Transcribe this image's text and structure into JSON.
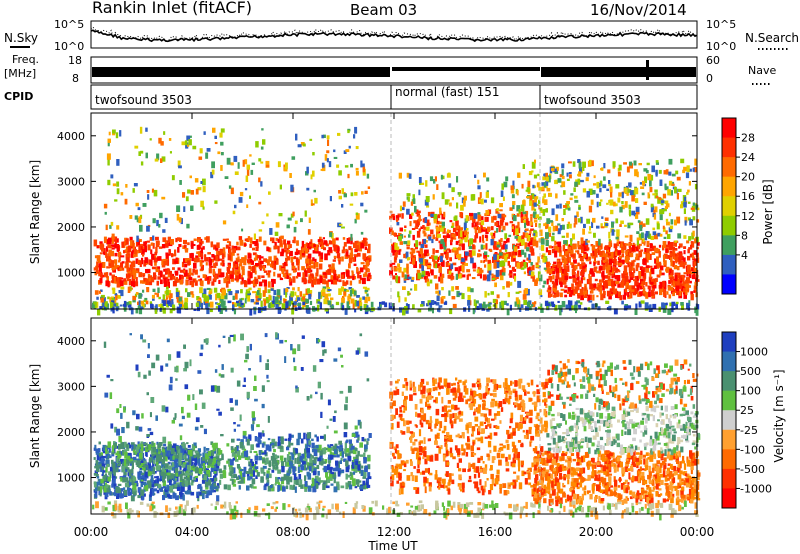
{
  "header": {
    "station": "Rankin Inlet (fitACF)",
    "beam": "Beam 03",
    "date": "16/Nov/2014"
  },
  "left_labels": {
    "nsky": "N.Sky",
    "freq_line1": "Freq.",
    "freq_line2": "[MHz]",
    "cpid": "CPID"
  },
  "right_labels": {
    "nsearch": "N.Search",
    "nave": "Nave"
  },
  "chart_data": [
    {
      "type": "line",
      "panel": "noise",
      "ytick_labels_left": [
        "10^5",
        "10^0"
      ],
      "ytick_labels_right": [
        "10^5",
        "10^0"
      ]
    },
    {
      "type": "line",
      "panel": "frequency-nave",
      "ytick_labels_left": [
        "18",
        "8"
      ],
      "ytick_labels_right": [
        "60",
        "0"
      ]
    },
    {
      "type": "table",
      "panel": "cpid",
      "segments": [
        {
          "start_hour": 0,
          "end_hour": 12,
          "label": "twofsound 3503"
        },
        {
          "start_hour": 12,
          "end_hour": 18,
          "label": "normal (fast) 151"
        },
        {
          "start_hour": 18,
          "end_hour": 24,
          "label": "twofsound 3503"
        }
      ]
    },
    {
      "type": "heatmap",
      "panel": "power",
      "ylabel": "Slant Range [km]",
      "ylim": [
        200,
        4500
      ],
      "yticks": [
        1000,
        2000,
        3000,
        4000
      ],
      "colorbar": {
        "label": "Power [dB]",
        "ticks": [
          "28",
          "24",
          "20",
          "16",
          "12",
          "8",
          "4"
        ],
        "colors": [
          "#ff0000",
          "#ff3000",
          "#ff6a00",
          "#ffa500",
          "#e0d000",
          "#8fcc00",
          "#3f9f5f",
          "#2f5fbf",
          "#0000ff"
        ]
      }
    },
    {
      "type": "heatmap",
      "panel": "velocity",
      "ylabel": "Slant Range [km]",
      "ylim": [
        200,
        4500
      ],
      "yticks": [
        1000,
        2000,
        3000,
        4000
      ],
      "colorbar": {
        "label": "Velocity [m s⁻¹]",
        "ticks": [
          "1000",
          "500",
          "100",
          "25",
          "-25",
          "-100",
          "-500",
          "-1000"
        ],
        "colors": [
          "#1f3fbf",
          "#3070b0",
          "#4a9070",
          "#60c040",
          "#cfcfcf",
          "#ffa030",
          "#ff6a00",
          "#ff3000",
          "#ff0000"
        ]
      }
    }
  ],
  "x_axis": {
    "label": "Time UT",
    "ticks": [
      "00:00",
      "04:00",
      "08:00",
      "12:00",
      "16:00",
      "20:00",
      "00:00"
    ]
  },
  "colors": {
    "power_red": "#ff2000",
    "velocity_blue": "#2040c0",
    "velocity_green": "#4e9a6a",
    "velocity_orange": "#ff7a00"
  }
}
